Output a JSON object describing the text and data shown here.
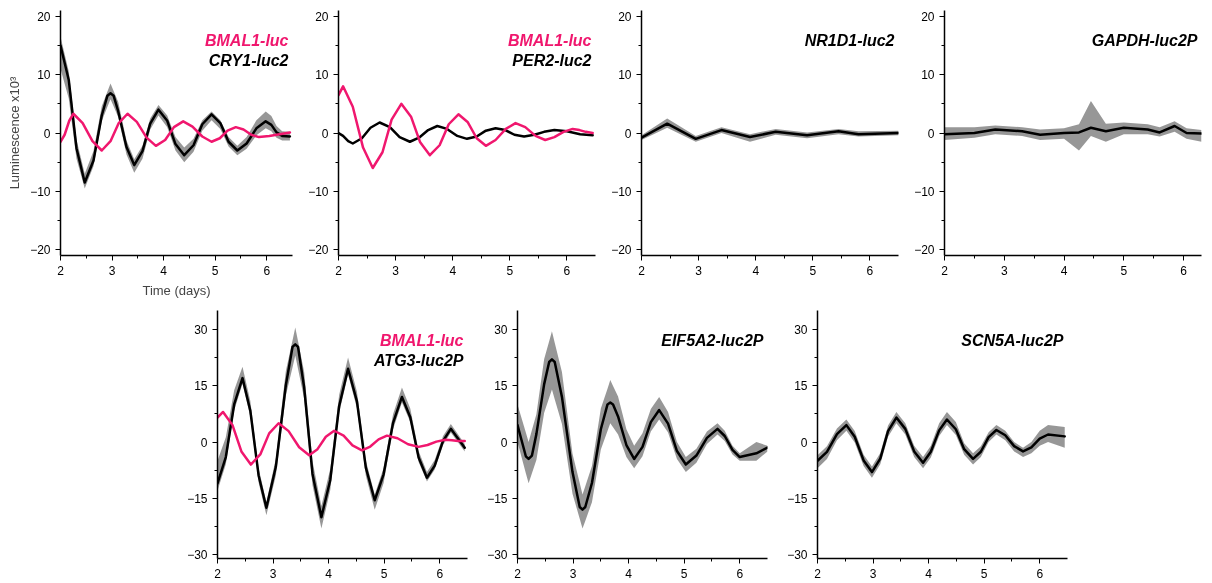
{
  "chart_data": [
    {
      "type": "line",
      "xlabel": "Time (days)",
      "ylabel": "Luminescence x10³",
      "xlim": [
        2,
        6.5
      ],
      "xticks": [
        2,
        3,
        4,
        5,
        6
      ],
      "ylim": [
        -21,
        21
      ],
      "yticks": [
        -20,
        -10,
        0,
        10,
        20
      ],
      "grid": false,
      "legend": "top right",
      "series": [
        {
          "name": "BMAL1-luc",
          "color": "#f0176e",
          "x": [
            2.0,
            2.08,
            2.17,
            2.25,
            2.43,
            2.62,
            2.8,
            2.97,
            3.13,
            3.3,
            3.48,
            3.67,
            3.85,
            4.03,
            4.2,
            4.38,
            4.56,
            4.75,
            4.93,
            5.09,
            5.24,
            5.4,
            5.55,
            5.7,
            5.85,
            6.05,
            6.25,
            6.45
          ],
          "values": [
            -1.5,
            -0.3,
            2.1,
            3.3,
            1.7,
            -1.4,
            -3,
            -1.4,
            1.7,
            3.3,
            1.9,
            -0.8,
            -2.2,
            -1.2,
            1,
            2,
            1.1,
            -0.6,
            -1.5,
            -0.9,
            0.4,
            1,
            0.6,
            -0.3,
            -0.7,
            -0.5,
            -0.2,
            0.1
          ]
        },
        {
          "name": "CRY1-luc2",
          "color": "#000000",
          "x": [
            2.0,
            2.16,
            2.31,
            2.47,
            2.64,
            2.8,
            2.91,
            2.97,
            3.03,
            3.12,
            3.28,
            3.43,
            3.59,
            3.74,
            3.9,
            4.07,
            4.23,
            4.4,
            4.58,
            4.75,
            4.93,
            5.1,
            5.26,
            5.43,
            5.61,
            5.8,
            5.98,
            6.09,
            6.19,
            6.3,
            6.45
          ],
          "values": [
            15,
            9.1,
            -2.6,
            -8.5,
            -4.7,
            3,
            6.4,
            6.8,
            6.4,
            3.7,
            -2.4,
            -5.5,
            -3.1,
            1.6,
            4,
            2.1,
            -1.9,
            -3.8,
            -2.1,
            1.5,
            3.2,
            1.7,
            -1.5,
            -3,
            -1.8,
            0.8,
            2,
            1.4,
            0.1,
            -0.5,
            -0.6
          ],
          "lower": [
            11,
            5.9,
            -4.4,
            -9.5,
            -5.7,
            2,
            4.5,
            5.8,
            4.6,
            2.7,
            -3.7,
            -6.8,
            -4.4,
            0.6,
            3,
            1,
            -3,
            -5,
            -3.2,
            0.4,
            2.2,
            0.7,
            -2.3,
            -3.8,
            -2.7,
            -0.4,
            0.8,
            0.3,
            -0.8,
            -1.3,
            -1.3
          ],
          "upper": [
            16.5,
            10.6,
            -1.1,
            -7,
            -3.1,
            4.6,
            7.1,
            8.5,
            7.2,
            5.3,
            -1.3,
            -4.5,
            -2.2,
            2.5,
            4.8,
            3,
            -0.7,
            -2.5,
            -1,
            2.2,
            3.7,
            2.2,
            -0.7,
            -2.2,
            -0.7,
            2.2,
            3.7,
            2.9,
            1.2,
            0.3,
            0.2
          ]
        }
      ]
    },
    {
      "type": "line",
      "xlim": [
        2,
        6.5
      ],
      "xticks": [
        2,
        3,
        4,
        5,
        6
      ],
      "ylim": [
        -21,
        21
      ],
      "yticks": [
        -20,
        -10,
        0,
        10,
        20
      ],
      "grid": false,
      "legend": "top right",
      "series": [
        {
          "name": "BMAL1-luc",
          "color": "#f0176e",
          "x": [
            2.0,
            2.08,
            2.25,
            2.43,
            2.6,
            2.77,
            2.93,
            3.1,
            3.27,
            3.43,
            3.6,
            3.77,
            3.93,
            4.1,
            4.26,
            4.42,
            4.58,
            4.75,
            4.93,
            5.1,
            5.27,
            5.45,
            5.62,
            5.78,
            5.94,
            6.1,
            6.22,
            6.33,
            6.45
          ],
          "values": [
            6.5,
            8,
            4.5,
            -2.5,
            -6,
            -3.3,
            2.3,
            5,
            2.8,
            -1.6,
            -3.8,
            -2.1,
            1.5,
            3.2,
            1.9,
            -0.9,
            -2.2,
            -1.2,
            0.7,
            1.7,
            1,
            -0.5,
            -1.2,
            -0.7,
            0.2,
            0.7,
            0.5,
            0.2,
            0
          ]
        },
        {
          "name": "PER2-luc2",
          "color": "#000000",
          "x": [
            2.0,
            2.08,
            2.17,
            2.25,
            2.41,
            2.56,
            2.72,
            2.9,
            3.07,
            3.25,
            3.41,
            3.57,
            3.73,
            3.9,
            4.08,
            4.25,
            4.42,
            4.58,
            4.75,
            4.92,
            5.08,
            5.25,
            5.43,
            5.6,
            5.78,
            6.0,
            6.23,
            6.45
          ],
          "values": [
            0,
            -0.5,
            -1.4,
            -1.8,
            -0.9,
            0.9,
            1.8,
            1,
            -0.7,
            -1.5,
            -0.8,
            0.5,
            1.2,
            0.7,
            -0.5,
            -1,
            -0.6,
            0.4,
            0.8,
            0.5,
            -0.3,
            -0.6,
            -0.3,
            0.2,
            0.5,
            0.3,
            -0.2,
            -0.4
          ]
        }
      ]
    },
    {
      "type": "line",
      "xlim": [
        2,
        6.5
      ],
      "xticks": [
        2,
        3,
        4,
        5,
        6
      ],
      "ylim": [
        -21,
        21
      ],
      "yticks": [
        -20,
        -10,
        0,
        10,
        20
      ],
      "grid": false,
      "legend": "top right",
      "series": [
        {
          "name": "NR1D1-luc2",
          "color": "#000000",
          "x": [
            2.0,
            2.45,
            2.95,
            3.4,
            3.9,
            4.35,
            4.9,
            5.45,
            5.8,
            6.5
          ],
          "values": [
            -0.8,
            1.6,
            -1,
            0.5,
            -0.7,
            0.2,
            -0.4,
            0.3,
            -0.2,
            0
          ],
          "lower": [
            -1.2,
            0.9,
            -1.5,
            0,
            -1.5,
            -0.3,
            -0.9,
            -0.2,
            -0.6,
            -0.4
          ],
          "upper": [
            -0.4,
            2.5,
            -0.5,
            1,
            -0.2,
            0.7,
            0.1,
            0.7,
            0.3,
            0.4
          ]
        }
      ]
    },
    {
      "type": "line",
      "xlim": [
        2,
        6.3
      ],
      "xticks": [
        2,
        3,
        4,
        5,
        6
      ],
      "ylim": [
        -21,
        21
      ],
      "yticks": [
        -20,
        -10,
        0,
        10,
        20
      ],
      "grid": false,
      "legend": "top right",
      "series": [
        {
          "name": "GAPDH-luc2P",
          "color": "#000000",
          "x": [
            2.0,
            2.5,
            2.85,
            3.3,
            3.6,
            4.0,
            4.25,
            4.45,
            4.7,
            5.0,
            5.4,
            5.6,
            5.85,
            6.05,
            6.3
          ],
          "values": [
            -0.2,
            0,
            0.6,
            0.3,
            -0.3,
            0,
            0.1,
            0.9,
            0.3,
            0.9,
            0.6,
            0.1,
            1.2,
            0,
            -0.1
          ],
          "lower": [
            -1.2,
            -0.8,
            -0.2,
            -0.5,
            -1.2,
            -1,
            -3,
            -0.5,
            -1.5,
            -0.2,
            -0.2,
            -0.6,
            0.2,
            -1,
            -1.5
          ],
          "upper": [
            1,
            1,
            1.3,
            1,
            0.6,
            0.8,
            1.5,
            5.5,
            1.6,
            1.8,
            1.5,
            1,
            2,
            0.8,
            0.5
          ]
        }
      ]
    },
    {
      "type": "line",
      "xlim": [
        2,
        6.5
      ],
      "xticks": [
        2,
        3,
        4,
        5,
        6
      ],
      "ylim": [
        -31,
        35
      ],
      "yticks": [
        -30,
        -15,
        0,
        15,
        30
      ],
      "grid": false,
      "legend": "top right",
      "series": [
        {
          "name": "BMAL1-luc",
          "color": "#f0176e",
          "x": [
            2.0,
            2.1,
            2.27,
            2.43,
            2.6,
            2.77,
            2.93,
            3.1,
            3.28,
            3.47,
            3.65,
            3.8,
            3.95,
            4.1,
            4.27,
            4.43,
            4.6,
            4.75,
            4.9,
            5.05,
            5.24,
            5.43,
            5.62,
            5.78,
            5.94,
            6.1,
            6.22,
            6.33,
            6.45
          ],
          "values": [
            6.5,
            8,
            4.5,
            -2.5,
            -6,
            -3.3,
            2.3,
            5,
            2.9,
            -1.4,
            -3.5,
            -1.9,
            1.4,
            3,
            1.7,
            -0.9,
            -2.2,
            -1.2,
            0.7,
            1.7,
            1,
            -0.6,
            -1.3,
            -0.8,
            0.1,
            0.6,
            0.5,
            0.3,
            0.3
          ]
        },
        {
          "name": "ATG3-luc2P",
          "color": "#000000",
          "x": [
            2.0,
            2.15,
            2.3,
            2.45,
            2.59,
            2.74,
            2.88,
            3.05,
            3.23,
            3.35,
            3.4,
            3.45,
            3.56,
            3.71,
            3.87,
            4.03,
            4.19,
            4.35,
            4.51,
            4.67,
            4.83,
            4.99,
            5.16,
            5.32,
            5.47,
            5.62,
            5.77,
            5.91,
            6.06,
            6.2,
            6.45
          ],
          "values": [
            -11,
            -4,
            10,
            17,
            8.4,
            -8.9,
            -17.5,
            -6.6,
            15.1,
            25.3,
            26,
            25.3,
            14.5,
            -8.5,
            -20,
            -10.1,
            9.6,
            19.5,
            10.8,
            -6.8,
            -15.5,
            -8.6,
            5.1,
            12,
            6.6,
            -4.1,
            -9.5,
            -6.3,
            0.3,
            3.5,
            -1.5
          ],
          "lower": [
            -13,
            -5.9,
            8.4,
            15.5,
            6.8,
            -10.8,
            -19.5,
            -8.9,
            12.4,
            19.8,
            23,
            19.4,
            11.5,
            -11.5,
            -23,
            -12.8,
            7.8,
            18,
            9,
            -9,
            -18,
            -10.9,
            3.4,
            10.5,
            5.3,
            -5.3,
            -10.5,
            -7.3,
            -0.8,
            2.5,
            -2.5
          ],
          "upper": [
            -5,
            1.3,
            13.8,
            20,
            11,
            -7,
            -16,
            -4.4,
            18.9,
            27,
            30.5,
            26.8,
            18.6,
            -5.1,
            -17,
            -7.1,
            12.6,
            22.5,
            13.4,
            -4.9,
            -14,
            -6.9,
            7.4,
            14.5,
            8.9,
            -2.4,
            -8,
            -4.8,
            1.6,
            4.8,
            -0.5
          ]
        }
      ]
    },
    {
      "type": "line",
      "xlim": [
        2,
        6.5
      ],
      "xticks": [
        2,
        3,
        4,
        5,
        6
      ],
      "ylim": [
        -31,
        35
      ],
      "yticks": [
        -30,
        -15,
        0,
        15,
        30
      ],
      "grid": false,
      "legend": "top right",
      "series": [
        {
          "name": "EIF5A2-luc2P",
          "color": "#000000",
          "x": [
            2.0,
            2.15,
            2.2,
            2.26,
            2.34,
            2.48,
            2.57,
            2.62,
            2.67,
            2.8,
            2.99,
            3.12,
            3.17,
            3.22,
            3.34,
            3.5,
            3.62,
            3.67,
            3.72,
            3.81,
            3.96,
            4.1,
            4.25,
            4.4,
            4.55,
            4.71,
            4.87,
            5.03,
            5.22,
            5.41,
            5.6,
            5.73,
            5.87,
            6.0,
            6.3,
            6.5
          ],
          "values": [
            4.5,
            -3.8,
            -4.5,
            -3.6,
            2.1,
            15.4,
            21.3,
            22,
            21.3,
            12,
            -8,
            -17.3,
            -18,
            -17.3,
            -10.9,
            3.4,
            10,
            10.5,
            10,
            6.8,
            -0.8,
            -4.5,
            -1.3,
            5.3,
            8.5,
            4.9,
            -2.4,
            -6,
            -3.6,
            1.1,
            3.5,
            1.6,
            -2.1,
            -4,
            -3,
            -1.5
          ],
          "lower": [
            0,
            -8.3,
            -11,
            -8.3,
            -4.8,
            7.8,
            11.8,
            14,
            11.4,
            4.8,
            -13.8,
            -20.4,
            -23,
            -21,
            -16,
            -2,
            2.9,
            5,
            3.9,
            2,
            -4,
            -7,
            -3.8,
            2.8,
            6,
            2.5,
            -4.5,
            -8,
            -5.5,
            -0.5,
            2,
            0.3,
            -3.3,
            -5,
            -5,
            -2.5
          ],
          "upper": [
            10,
            2.5,
            0,
            3.2,
            7.4,
            22.1,
            26.8,
            29.5,
            26.4,
            18.6,
            -3.1,
            -10.9,
            -14,
            -11.8,
            -6.4,
            8.9,
            14.2,
            16.5,
            14.9,
            12.1,
            3.4,
            -1,
            2.3,
            8.8,
            12,
            8,
            0,
            -4,
            -1.8,
            2.8,
            5,
            3,
            -1,
            -3,
            0,
            -1
          ]
        }
      ]
    },
    {
      "type": "line",
      "xlim": [
        2,
        6.5
      ],
      "xticks": [
        2,
        3,
        4,
        5,
        6
      ],
      "ylim": [
        -31,
        35
      ],
      "yticks": [
        -30,
        -15,
        0,
        15,
        30
      ],
      "grid": false,
      "legend": "top right",
      "series": [
        {
          "name": "SCN5A-luc2P",
          "color": "#000000",
          "x": [
            2.0,
            2.17,
            2.35,
            2.52,
            2.67,
            2.83,
            2.98,
            3.13,
            3.27,
            3.42,
            3.58,
            3.74,
            3.9,
            4.04,
            4.19,
            4.33,
            4.49,
            4.64,
            4.8,
            4.94,
            5.08,
            5.22,
            5.38,
            5.54,
            5.7,
            5.85,
            6.0,
            6.15,
            6.45
          ],
          "values": [
            -5,
            -2.6,
            2.1,
            4.5,
            1.4,
            -4.9,
            -8,
            -4.4,
            2.9,
            6.5,
            3.5,
            -2.5,
            -5.5,
            -2.6,
            3.1,
            6,
            3.4,
            -1.9,
            -4.5,
            -2.6,
            1.3,
            3.2,
            1.8,
            -1.1,
            -2.5,
            -1.4,
            0.9,
            2,
            1.5
          ],
          "lower": [
            -7,
            -4.5,
            0.5,
            3,
            -0.1,
            -6.4,
            -9.5,
            -5.9,
            1.4,
            5,
            2,
            -4,
            -7,
            -4.1,
            1.6,
            4.5,
            1.9,
            -3.4,
            -6,
            -4,
            0,
            2,
            0.5,
            -2.5,
            -4,
            -3,
            -1,
            0,
            -1.5
          ],
          "upper": [
            -3.5,
            -1.1,
            3.6,
            6,
            2.9,
            -3.4,
            -6.5,
            -2.9,
            4.4,
            8,
            5,
            -1,
            -4,
            -1,
            5,
            8,
            5.3,
            -0.3,
            -3,
            -1.1,
            2.6,
            4.5,
            3,
            0,
            -1.5,
            0,
            3,
            4.5,
            4
          ]
        }
      ]
    }
  ]
}
